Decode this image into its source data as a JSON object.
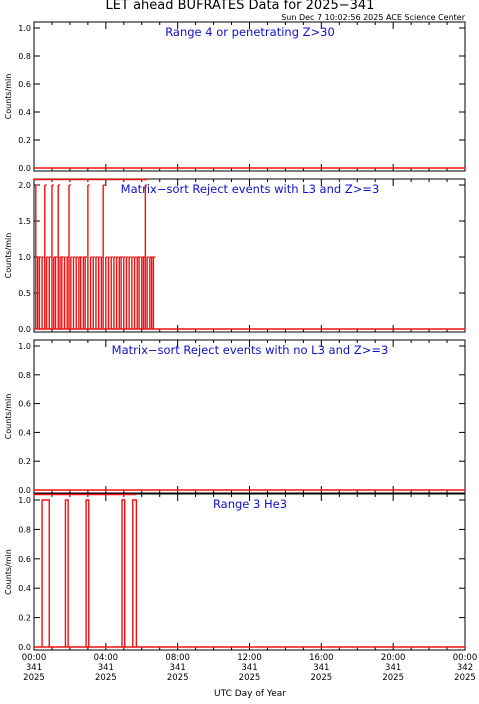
{
  "header": {
    "title": "LET ahead BUFRATES Data for 2025−341",
    "timestamp": "Sun Dec  7 10:02:56 2025 ACE Science Center"
  },
  "chart_data": [
    {
      "type": "line",
      "title": "Range 4 or   penetrating Z>30",
      "ylabel": "Counts/min",
      "ylim": [
        0,
        1.0
      ],
      "yticks": [
        "0.0",
        "0.2",
        "0.4",
        "0.6",
        "0.8",
        "1.0"
      ],
      "ytick_values": [
        0,
        0.2,
        0.4,
        0.6,
        0.8,
        1.0
      ],
      "xlim": [
        0,
        24
      ],
      "series": [
        {
          "segments": [
            [
              0,
              24,
              0
            ]
          ],
          "spikes": []
        }
      ]
    },
    {
      "type": "line",
      "title": "Matrix−sort Reject events with L3 and Z>=3",
      "ylabel": "Counts/min",
      "ylim": [
        0,
        2.0
      ],
      "yticks": [
        "0.0",
        "0.5",
        "1.0",
        "1.5",
        "2.0"
      ],
      "ytick_values": [
        0,
        0.5,
        1.0,
        1.5,
        2.0
      ],
      "xlim": [
        0,
        24
      ],
      "series": [
        {
          "segments": [
            [
              0,
              0.1,
              1
            ],
            [
              0.1,
              6.7,
              0
            ],
            [
              6.7,
              24,
              0
            ]
          ],
          "spikes": [
            [
              0.1,
              2
            ],
            [
              0.2,
              1
            ],
            [
              0.3,
              1
            ],
            [
              0.45,
              1
            ],
            [
              0.6,
              2
            ],
            [
              0.7,
              1
            ],
            [
              0.85,
              1
            ],
            [
              1.0,
              2
            ],
            [
              1.1,
              1
            ],
            [
              1.2,
              1
            ],
            [
              1.35,
              2
            ],
            [
              1.45,
              1
            ],
            [
              1.55,
              1
            ],
            [
              1.7,
              1
            ],
            [
              1.85,
              1
            ],
            [
              1.95,
              2
            ],
            [
              2.05,
              1
            ],
            [
              2.2,
              1
            ],
            [
              2.35,
              1
            ],
            [
              2.5,
              1
            ],
            [
              2.6,
              1
            ],
            [
              2.75,
              1
            ],
            [
              2.85,
              1
            ],
            [
              3.0,
              2
            ],
            [
              3.15,
              1
            ],
            [
              3.3,
              1
            ],
            [
              3.45,
              1
            ],
            [
              3.6,
              1
            ],
            [
              3.75,
              1
            ],
            [
              3.85,
              2
            ],
            [
              4.0,
              1
            ],
            [
              4.15,
              1
            ],
            [
              4.3,
              1
            ],
            [
              4.45,
              1
            ],
            [
              4.6,
              1
            ],
            [
              4.75,
              1
            ],
            [
              4.85,
              1
            ],
            [
              5.0,
              1
            ],
            [
              5.15,
              1
            ],
            [
              5.3,
              1
            ],
            [
              5.45,
              1
            ],
            [
              5.6,
              1
            ],
            [
              5.75,
              1
            ],
            [
              5.85,
              1
            ],
            [
              6.0,
              1
            ],
            [
              6.1,
              1
            ],
            [
              6.2,
              2
            ],
            [
              6.3,
              1
            ],
            [
              6.45,
              1
            ],
            [
              6.55,
              1
            ],
            [
              6.65,
              1
            ]
          ],
          "top_band": [
            0,
            6.3
          ]
        }
      ]
    },
    {
      "type": "line",
      "title": "Matrix−sort Reject events with no L3 and Z>=3",
      "ylabel": "Counts/min",
      "ylim": [
        0,
        1.0
      ],
      "yticks": [
        "0.0",
        "0.2",
        "0.4",
        "0.6",
        "0.8",
        "1.0"
      ],
      "ytick_values": [
        0,
        0.2,
        0.4,
        0.6,
        0.8,
        1.0
      ],
      "xlim": [
        0,
        24
      ],
      "series": [
        {
          "segments": [
            [
              0,
              24,
              0
            ]
          ],
          "spikes": []
        }
      ]
    },
    {
      "type": "line",
      "title": "Range 3 He3",
      "ylabel": "Counts/min",
      "ylim": [
        0,
        1.0
      ],
      "yticks": [
        "0.0",
        "0.2",
        "0.4",
        "0.6",
        "0.8",
        "1.0"
      ],
      "ytick_values": [
        0,
        0.2,
        0.4,
        0.6,
        0.8,
        1.0
      ],
      "xlim": [
        0,
        24
      ],
      "series": [
        {
          "segments": [
            [
              0,
              24,
              0
            ]
          ],
          "spikes": [],
          "pulses": [
            [
              0.45,
              0.85
            ],
            [
              1.75,
              1.9
            ],
            [
              2.9,
              3.05
            ],
            [
              4.9,
              5.05
            ],
            [
              5.5,
              5.7
            ]
          ],
          "top_band": [
            0,
            5.7
          ]
        }
      ]
    }
  ],
  "xaxis": {
    "label": "UTC Day of Year",
    "ticks": [
      {
        "time": "00:00",
        "doy": "341",
        "year": "2025",
        "hour": 0
      },
      {
        "time": "04:00",
        "doy": "341",
        "year": "2025",
        "hour": 4
      },
      {
        "time": "08:00",
        "doy": "341",
        "year": "2025",
        "hour": 8
      },
      {
        "time": "12:00",
        "doy": "341",
        "year": "2025",
        "hour": 12
      },
      {
        "time": "16:00",
        "doy": "341",
        "year": "2025",
        "hour": 16
      },
      {
        "time": "20:00",
        "doy": "341",
        "year": "2025",
        "hour": 20
      },
      {
        "time": "00:00",
        "doy": "342",
        "year": "2025",
        "hour": 24
      }
    ]
  },
  "colors": {
    "axes": "#000000",
    "data": "#ee1111",
    "panel_title": "#1010cc"
  }
}
